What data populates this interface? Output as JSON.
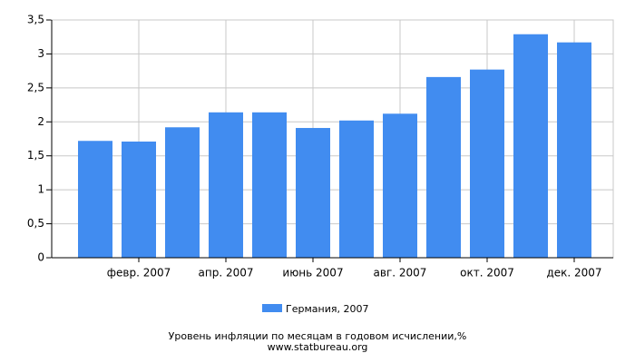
{
  "chart_data": {
    "type": "bar",
    "title": "Уровень инфляции по месяцам в годовом исчислении,%",
    "source": "www.statbureau.org",
    "categories": [
      null,
      "февр. 2007",
      null,
      "апр. 2007",
      null,
      "июнь 2007",
      null,
      "авг. 2007",
      null,
      "окт. 2007",
      null,
      "дек. 2007"
    ],
    "series": [
      {
        "name": "Германия, 2007",
        "color": "#418cf0",
        "values": [
          1.72,
          1.71,
          1.92,
          2.14,
          2.14,
          1.91,
          2.02,
          2.12,
          2.66,
          2.77,
          3.29,
          3.17
        ]
      }
    ],
    "ylim": [
      0,
      3.5
    ],
    "yticks": [
      0,
      {
        "value": 0.5,
        "label": "0,5"
      },
      1,
      {
        "value": 1.5,
        "label": "1,5"
      },
      2,
      {
        "value": 2.5,
        "label": "2,5"
      },
      3,
      {
        "value": 3.5,
        "label": "3,5"
      }
    ],
    "grid": true
  }
}
